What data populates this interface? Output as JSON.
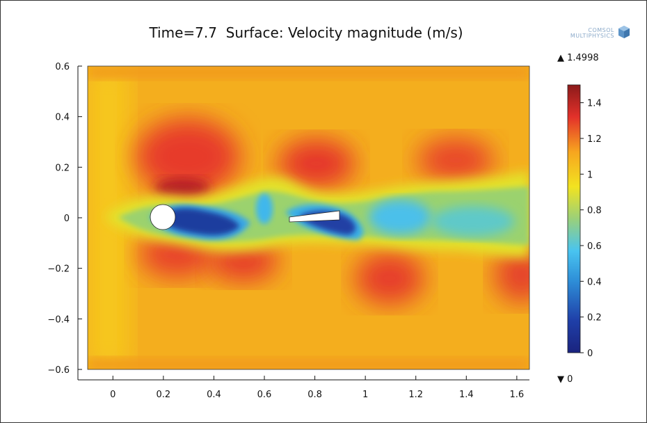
{
  "title": "Time=7.7  Surface: Velocity magnitude (m/s)",
  "logo": {
    "line1": "COMSOL",
    "line2": "MULTIPHYSICS"
  },
  "colorbar": {
    "max_label": "▲ 1.4998",
    "min_label": "▼ 0",
    "ticks": [
      "1.4",
      "1.2",
      "1",
      "0.8",
      "0.6",
      "0.4",
      "0.2",
      "0"
    ],
    "tick_values": [
      1.4,
      1.2,
      1.0,
      0.8,
      0.6,
      0.4,
      0.2,
      0.0
    ],
    "range": [
      0,
      1.4998
    ]
  },
  "chart_data": {
    "type": "heatmap",
    "title": "Time=7.7  Surface: Velocity magnitude (m/s)",
    "xlim": [
      -0.1,
      1.65
    ],
    "ylim": [
      -0.65,
      0.65
    ],
    "x_ticks": [
      "0",
      "0.2",
      "0.4",
      "0.6",
      "0.8",
      "1",
      "1.2",
      "1.4",
      "1.6"
    ],
    "x_tick_values": [
      0,
      0.2,
      0.4,
      0.6,
      0.8,
      1.0,
      1.2,
      1.4,
      1.6
    ],
    "y_ticks": [
      "0.6",
      "0.4",
      "0.2",
      "0",
      "−0.2",
      "−0.4",
      "−0.6"
    ],
    "y_tick_values": [
      0.6,
      0.4,
      0.2,
      0,
      -0.2,
      -0.4,
      -0.6
    ],
    "domain_x": [
      -0.1,
      1.65
    ],
    "domain_y": [
      -0.6,
      0.6
    ],
    "value_range": [
      0,
      1.4998
    ],
    "colormap": "rainbow",
    "obstacles": [
      {
        "shape": "circle",
        "center": [
          0.2,
          0.0
        ],
        "radius": 0.05
      },
      {
        "shape": "plate",
        "x": [
          0.7,
          0.9
        ],
        "y": [
          0.0,
          0.02
        ]
      }
    ],
    "grid": false
  }
}
